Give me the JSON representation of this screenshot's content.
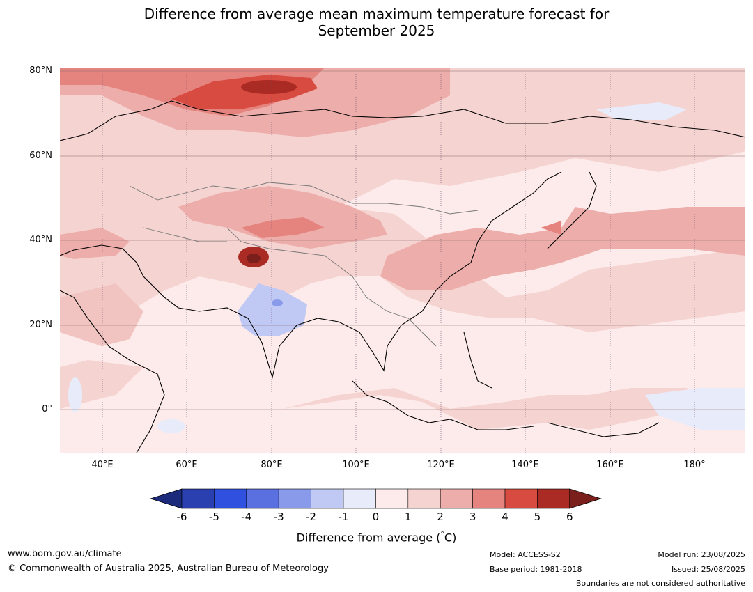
{
  "title": {
    "line1": "Difference from average mean maximum temperature forecast for",
    "line2": "September 2025"
  },
  "map": {
    "lat_labels": [
      "80°N",
      "60°N",
      "40°N",
      "20°N",
      "0°"
    ],
    "lon_labels": [
      "40°E",
      "60°E",
      "80°E",
      "100°E",
      "120°E",
      "140°E",
      "160°E",
      "180°"
    ],
    "lon_range": [
      30,
      192
    ],
    "lat_range": [
      -10,
      80
    ]
  },
  "colorbar": {
    "ticks": [
      "-6",
      "-5",
      "-4",
      "-3",
      "-2",
      "-1",
      "0",
      "1",
      "2",
      "3",
      "4",
      "5",
      "6"
    ],
    "colors": [
      "#1b2a7a",
      "#2a3fb0",
      "#3050e0",
      "#5b70e0",
      "#8a9aea",
      "#c0c8f4",
      "#e8ecfa",
      "#fcebea",
      "#f5d3d1",
      "#edaeab",
      "#e5847f",
      "#d84b40",
      "#aa2a24",
      "#7a1f1c"
    ],
    "label": "Difference from average ($^\\circ$C)",
    "label_text": "Difference from average (",
    "label_unit": "C)",
    "label_deg": "°"
  },
  "footer": {
    "url": "www.bom.gov.au/climate",
    "copyright": "© Commonwealth of Australia 2025, Australian Bureau of Meteorology",
    "model": "Model: ACCESS-S2",
    "base_period": "Base period: 1981-2018",
    "model_run": "Model run: 23/08/2025",
    "issued": "Issued: 25/08/2025",
    "boundaries": "Boundaries are not considered authoritative"
  }
}
